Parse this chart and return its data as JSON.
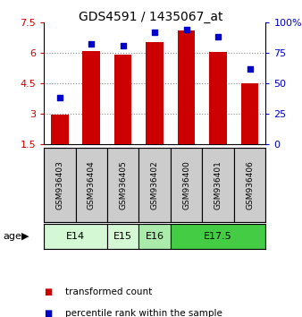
{
  "title": "GDS4591 / 1435067_at",
  "samples": [
    "GSM936403",
    "GSM936404",
    "GSM936405",
    "GSM936402",
    "GSM936400",
    "GSM936401",
    "GSM936406"
  ],
  "transformed_counts": [
    2.95,
    6.1,
    5.9,
    6.5,
    7.1,
    6.05,
    4.5
  ],
  "percentile_ranks": [
    38,
    82,
    81,
    92,
    94,
    88,
    62
  ],
  "ylim_left": [
    1.5,
    7.5
  ],
  "ylim_right": [
    0,
    100
  ],
  "yticks_left": [
    1.5,
    3.0,
    4.5,
    6.0,
    7.5
  ],
  "yticks_right": [
    0,
    25,
    50,
    75,
    100
  ],
  "ytick_labels_left": [
    "1.5",
    "3",
    "4.5",
    "6",
    "7.5"
  ],
  "ytick_labels_right": [
    "0",
    "25",
    "50",
    "75",
    "100%"
  ],
  "bar_color": "#cc0000",
  "dot_color": "#0000cc",
  "bar_bottom": 1.5,
  "age_groups": [
    {
      "label": "E14",
      "samples": [
        0,
        1
      ],
      "color": "#d4f7d4"
    },
    {
      "label": "E15",
      "samples": [
        2
      ],
      "color": "#d4f7d4"
    },
    {
      "label": "E16",
      "samples": [
        3
      ],
      "color": "#aaeaaa"
    },
    {
      "label": "E17.5",
      "samples": [
        4,
        5,
        6
      ],
      "color": "#44cc44"
    }
  ],
  "grid_yticks": [
    3.0,
    4.5,
    6.0
  ],
  "grid_color": "#888888",
  "bg_color": "#ffffff",
  "sample_box_color": "#cccccc",
  "bar_width": 0.55,
  "legend_items": [
    {
      "color": "#cc0000",
      "label": "transformed count"
    },
    {
      "color": "#0000cc",
      "label": "percentile rank within the sample"
    }
  ]
}
